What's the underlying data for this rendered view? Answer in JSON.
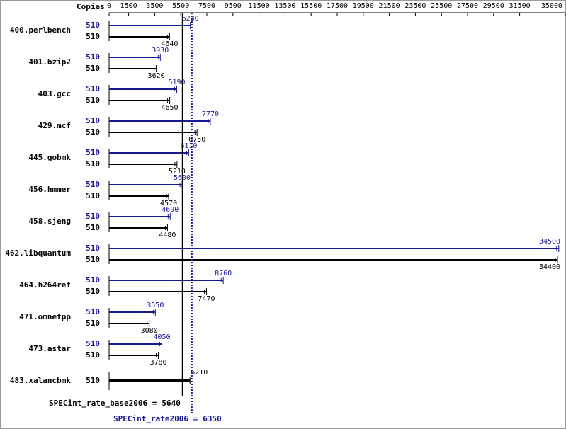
{
  "chart_data": {
    "type": "spec-bar",
    "axis_label": "Copies",
    "xlim": [
      0,
      35000
    ],
    "xticks": [
      0,
      1500,
      3500,
      5500,
      7500,
      9500,
      11500,
      13500,
      15500,
      17500,
      19500,
      21500,
      23500,
      25500,
      27500,
      29500,
      31500,
      35000
    ],
    "peak_color": "#191990",
    "base_color": "#000000",
    "benchmarks": [
      {
        "name": "400.perlbench",
        "peak": {
          "copies": 510,
          "value": 6230
        },
        "base": {
          "copies": 510,
          "value": 4640
        }
      },
      {
        "name": "401.bzip2",
        "peak": {
          "copies": 510,
          "value": 3930
        },
        "base": {
          "copies": 510,
          "value": 3620
        }
      },
      {
        "name": "403.gcc",
        "peak": {
          "copies": 510,
          "value": 5190
        },
        "base": {
          "copies": 510,
          "value": 4650
        }
      },
      {
        "name": "429.mcf",
        "peak": {
          "copies": 510,
          "value": 7770
        },
        "base": {
          "copies": 510,
          "value": 6750
        }
      },
      {
        "name": "445.gobmk",
        "peak": {
          "copies": 510,
          "value": 6110
        },
        "base": {
          "copies": 510,
          "value": 5210
        }
      },
      {
        "name": "456.hmmer",
        "peak": {
          "copies": 510,
          "value": 5600
        },
        "base": {
          "copies": 510,
          "value": 4570
        }
      },
      {
        "name": "458.sjeng",
        "peak": {
          "copies": 510,
          "value": 4690
        },
        "base": {
          "copies": 510,
          "value": 4480
        }
      },
      {
        "name": "462.libquantum",
        "peak": {
          "copies": 510,
          "value": 34500
        },
        "base": {
          "copies": 510,
          "value": 34400
        }
      },
      {
        "name": "464.h264ref",
        "peak": {
          "copies": 510,
          "value": 8760
        },
        "base": {
          "copies": 510,
          "value": 7470
        }
      },
      {
        "name": "471.omnetpp",
        "peak": {
          "copies": 510,
          "value": 3550
        },
        "base": {
          "copies": 510,
          "value": 3080
        }
      },
      {
        "name": "473.astar",
        "peak": {
          "copies": 510,
          "value": 4050
        },
        "base": {
          "copies": 510,
          "value": 3780
        }
      },
      {
        "name": "483.xalancbmk",
        "base": {
          "copies": 510,
          "value": 6210
        }
      }
    ],
    "base_summary": {
      "label": "SPECint_rate_base2006 =",
      "value": 5640
    },
    "peak_summary": {
      "label": "SPECint_rate2006 =",
      "value": 6350
    }
  }
}
